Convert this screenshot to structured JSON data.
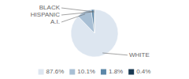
{
  "chart_data": {
    "type": "pie",
    "categories": [
      "WHITE",
      "A.I.",
      "HISPANIC",
      "BLACK"
    ],
    "values": [
      87.6,
      10.1,
      1.8,
      0.4
    ],
    "value_labels": [
      "87.6%",
      "10.1%",
      "1.8%",
      "0.4%"
    ],
    "colors": [
      "#dde6f0",
      "#a8bfd4",
      "#5c87a8",
      "#1a3a52"
    ],
    "legend": "bottom"
  }
}
